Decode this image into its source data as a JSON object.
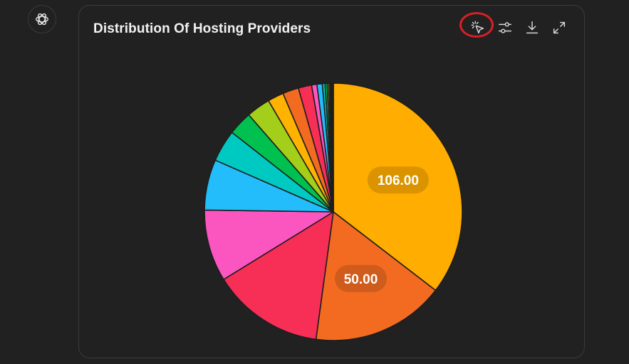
{
  "header": {
    "avatar_icon": "openai-logo-icon",
    "title": "Distribution Of Hosting Providers"
  },
  "toolbar": {
    "icons": [
      "select-pointer-icon",
      "sliders-icon",
      "download-icon",
      "expand-icon"
    ]
  },
  "chart_data": {
    "type": "pie",
    "title": "Distribution Of Hosting Providers",
    "start_angle_deg": 0,
    "direction": "clockwise",
    "legend": "none",
    "slices": [
      {
        "value": 106,
        "color": "#ffad00",
        "label": "106.00"
      },
      {
        "value": 50,
        "color": "#f26b21",
        "label": "50.00"
      },
      {
        "value": 42,
        "color": "#f72e55",
        "label": ""
      },
      {
        "value": 27,
        "color": "#fb56c0",
        "label": ""
      },
      {
        "value": 19,
        "color": "#24bdfb",
        "label": ""
      },
      {
        "value": 12,
        "color": "#00c9c2",
        "label": ""
      },
      {
        "value": 9,
        "color": "#00c04f",
        "label": ""
      },
      {
        "value": 9,
        "color": "#a3ce1a",
        "label": ""
      },
      {
        "value": 6,
        "color": "#ffb300",
        "label": ""
      },
      {
        "value": 6,
        "color": "#f26b21",
        "label": ""
      },
      {
        "value": 5,
        "color": "#f72e55",
        "label": ""
      },
      {
        "value": 2,
        "color": "#fb56c0",
        "label": ""
      },
      {
        "value": 2,
        "color": "#24bdfb",
        "label": ""
      },
      {
        "value": 1,
        "color": "#00c9c2",
        "label": ""
      },
      {
        "value": 0.8,
        "color": "#00c04f",
        "label": ""
      },
      {
        "value": 0.6,
        "color": "#a3ce1a",
        "label": ""
      },
      {
        "value": 0.5,
        "color": "#ffad00",
        "label": ""
      },
      {
        "value": 0.4,
        "color": "#f26b21",
        "label": ""
      },
      {
        "value": 0.3,
        "color": "#f72e55",
        "label": ""
      },
      {
        "value": 0.3,
        "color": "#fb56c0",
        "label": ""
      },
      {
        "value": 0.2,
        "color": "#24bdfb",
        "label": ""
      }
    ]
  }
}
